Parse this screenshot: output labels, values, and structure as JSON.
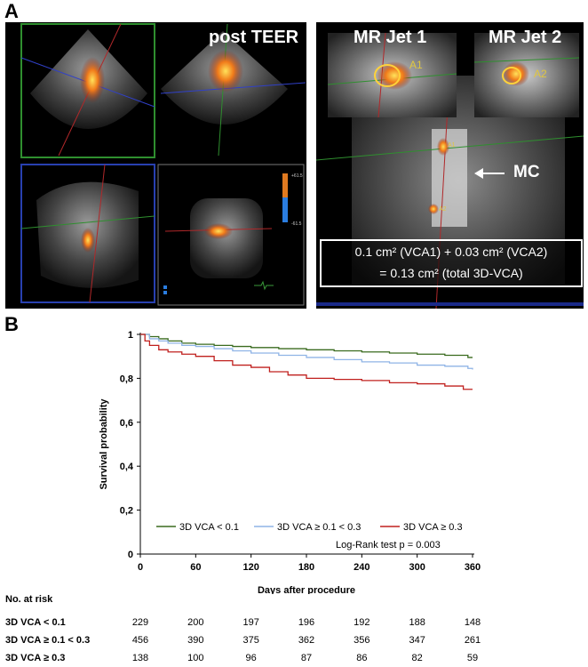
{
  "panel_a": {
    "letter": "A",
    "left_title": "post TEER",
    "right_titles": [
      "MR Jet 1",
      "MR Jet 2"
    ],
    "jet_labels": [
      "A1",
      "A2"
    ],
    "mc_label": "MC",
    "colorbar_labels": [
      "+61.5",
      "-61.5"
    ],
    "caption_line1": "0.1 cm² (VCA1) + 0.03 cm² (VCA2)",
    "caption_line2": "= 0.13 cm² (total 3D-VCA)"
  },
  "panel_b": {
    "letter": "B",
    "legend_note": "Log-Rank test p = 0.003"
  },
  "chart_data": {
    "type": "line",
    "title": "",
    "xlabel": "Days after procedure",
    "ylabel": "Survival probability",
    "xlim": [
      0,
      360
    ],
    "ylim": [
      0,
      1
    ],
    "xticks": [
      0,
      60,
      120,
      180,
      240,
      300,
      360
    ],
    "yticks": [
      0,
      0.2,
      0.4,
      0.6,
      0.8,
      1
    ],
    "ytick_labels": [
      "0",
      "0,2",
      "0,4",
      "0,6",
      "0,8",
      "1"
    ],
    "series": [
      {
        "name": "3D VCA < 0.1",
        "color": "#3a6b1f",
        "x": [
          0,
          10,
          20,
          30,
          45,
          60,
          80,
          100,
          120,
          150,
          180,
          210,
          240,
          270,
          300,
          330,
          355,
          360
        ],
        "y": [
          1,
          0.99,
          0.98,
          0.97,
          0.96,
          0.955,
          0.95,
          0.945,
          0.94,
          0.935,
          0.93,
          0.925,
          0.92,
          0.915,
          0.91,
          0.905,
          0.895,
          0.895
        ]
      },
      {
        "name": "3D VCA ≥ 0.1 < 0.3",
        "color": "#8fb4e6",
        "x": [
          0,
          10,
          20,
          30,
          45,
          60,
          80,
          100,
          120,
          150,
          180,
          210,
          240,
          270,
          300,
          330,
          355,
          360
        ],
        "y": [
          1,
          0.98,
          0.97,
          0.96,
          0.95,
          0.945,
          0.935,
          0.925,
          0.915,
          0.905,
          0.895,
          0.885,
          0.875,
          0.87,
          0.86,
          0.855,
          0.845,
          0.84
        ]
      },
      {
        "name": "3D VCA ≥ 0.3",
        "color": "#c0201e",
        "x": [
          0,
          5,
          10,
          20,
          30,
          45,
          60,
          80,
          100,
          120,
          140,
          160,
          180,
          210,
          240,
          270,
          300,
          330,
          350,
          360
        ],
        "y": [
          1,
          0.97,
          0.95,
          0.93,
          0.92,
          0.91,
          0.9,
          0.88,
          0.86,
          0.85,
          0.83,
          0.815,
          0.8,
          0.795,
          0.79,
          0.78,
          0.775,
          0.765,
          0.75,
          0.75
        ]
      }
    ],
    "legend_position": "bottom-right"
  },
  "risk_table": {
    "title": "No. at risk",
    "columns": [
      0,
      60,
      120,
      180,
      240,
      300,
      360
    ],
    "rows": [
      {
        "name": "3D VCA < 0.1",
        "values": [
          "229",
          "200",
          "197",
          "196",
          "192",
          "188",
          "148"
        ]
      },
      {
        "name": "3D VCA ≥ 0.1 < 0.3",
        "values": [
          "456",
          "390",
          "375",
          "362",
          "356",
          "347",
          "261"
        ]
      },
      {
        "name": "3D VCA ≥ 0.3",
        "values": [
          "138",
          "100",
          "96",
          "87",
          "86",
          "82",
          "59"
        ]
      }
    ]
  }
}
